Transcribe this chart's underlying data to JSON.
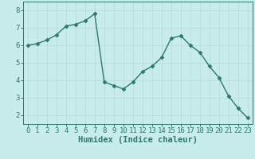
{
  "x": [
    0,
    1,
    2,
    3,
    4,
    5,
    6,
    7,
    8,
    9,
    10,
    11,
    12,
    13,
    14,
    15,
    16,
    17,
    18,
    19,
    20,
    21,
    22,
    23
  ],
  "y": [
    6.0,
    6.1,
    6.3,
    6.6,
    7.1,
    7.2,
    7.4,
    7.8,
    3.9,
    3.7,
    3.5,
    3.9,
    4.5,
    4.8,
    5.3,
    6.4,
    6.55,
    6.0,
    5.6,
    4.8,
    4.15,
    3.1,
    2.4,
    1.85
  ],
  "line_color": "#2d7a6a",
  "bg_color": "#c8ecea",
  "grid_color": "#b0ddd8",
  "xlabel": "Humidex (Indice chaleur)",
  "xlim": [
    -0.5,
    23.5
  ],
  "ylim": [
    1.5,
    8.5
  ],
  "yticks": [
    2,
    3,
    4,
    5,
    6,
    7,
    8
  ],
  "xticks": [
    0,
    1,
    2,
    3,
    4,
    5,
    6,
    7,
    8,
    9,
    10,
    11,
    12,
    13,
    14,
    15,
    16,
    17,
    18,
    19,
    20,
    21,
    22,
    23
  ],
  "marker": "D",
  "markersize": 2.5,
  "linewidth": 1.0,
  "xlabel_fontsize": 7.5,
  "tick_fontsize": 6.5,
  "axis_color": "#2d7a6a",
  "spine_color": "#2d7a6a"
}
